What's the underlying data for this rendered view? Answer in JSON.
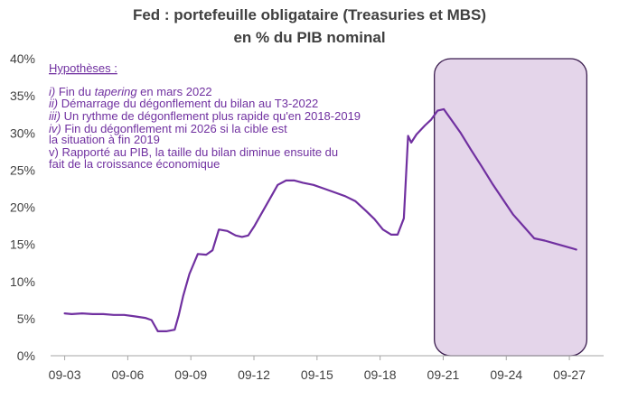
{
  "chart_data": {
    "type": "line",
    "title": "Fed : portefeuille obligataire (Treasuries et MBS)",
    "subtitle": "en % du PIB nominal",
    "ylim": [
      0,
      40
    ],
    "xlim": [
      2003,
      2029.3
    ],
    "y_tick_labels": [
      "0%",
      "5%",
      "10%",
      "15%",
      "20%",
      "25%",
      "30%",
      "35%",
      "40%"
    ],
    "y_tick_values": [
      0,
      5,
      10,
      15,
      20,
      25,
      30,
      35,
      40
    ],
    "x_tick_labels": [
      "09-03",
      "09-06",
      "09-09",
      "09-12",
      "09-15",
      "09-18",
      "09-21",
      "09-24",
      "09-27"
    ],
    "x_tick_values": [
      2003.67,
      2006.67,
      2009.67,
      2012.67,
      2015.67,
      2018.67,
      2021.67,
      2024.67,
      2027.67
    ],
    "grid": false,
    "legend": "none",
    "colors": {
      "line": "#7030a0",
      "highlight_fill": "#e4d5ea",
      "highlight_stroke": "#3b1d4f",
      "text": "#404040",
      "axis": "#a6a6a6"
    },
    "highlight_region": {
      "x_start": 2021.25,
      "x_end": 2028.5,
      "y_bottom": 0,
      "y_top": 40
    },
    "annotation": {
      "heading": "Hypothèses :",
      "lines": [
        {
          "num": "i)",
          "pre": " Fin du ",
          "em": "tapering",
          "post": " en mars 2022"
        },
        {
          "num": "ii)",
          "pre": " Démarrage du dégonflement du bilan au T3-2022",
          "em": "",
          "post": ""
        },
        {
          "num": "iii)",
          "pre": " Un rythme de dégonflement plus rapide qu'en 2018-2019",
          "em": "",
          "post": ""
        },
        {
          "num": "iv)",
          "pre": " Fin du dégonflement mi 2026 si la cible est",
          "em": "",
          "post": ""
        },
        {
          "num": "",
          "pre": "la situation à fin 2019",
          "em": "",
          "post": ""
        },
        {
          "num": "",
          "pre": "v) Rapporté au PIB, la taille du bilan diminue ensuite du",
          "em": "",
          "post": ""
        },
        {
          "num": "",
          "pre": "fait de la croissance économique",
          "em": "",
          "post": ""
        }
      ]
    },
    "series": [
      {
        "x": [
          2003.67,
          2004.0,
          2004.5,
          2005.0,
          2005.5,
          2006.0,
          2006.5,
          2007.0,
          2007.5,
          2007.8,
          2008.1,
          2008.5,
          2008.9,
          2009.1,
          2009.3,
          2009.6,
          2010.0,
          2010.4,
          2010.7,
          2011.0,
          2011.4,
          2011.8,
          2012.1,
          2012.4,
          2012.7,
          2013.0,
          2013.4,
          2013.8,
          2014.2,
          2014.6,
          2015.0,
          2015.5,
          2016.0,
          2016.5,
          2017.0,
          2017.5,
          2018.0,
          2018.4,
          2018.8,
          2019.2,
          2019.5,
          2019.8,
          2020.0,
          2020.15,
          2020.4,
          2020.8,
          2021.1,
          2021.4,
          2021.7,
          2022.0,
          2022.5,
          2023.0,
          2023.5,
          2024.0,
          2024.5,
          2025.0,
          2025.5,
          2026.0,
          2026.5,
          2027.0,
          2027.5,
          2028.0
        ],
        "y": [
          5.7,
          5.6,
          5.7,
          5.6,
          5.6,
          5.5,
          5.5,
          5.3,
          5.1,
          4.8,
          3.3,
          3.3,
          3.5,
          5.5,
          8.0,
          11.0,
          13.7,
          13.6,
          14.2,
          17.0,
          16.8,
          16.2,
          16.0,
          16.2,
          17.5,
          19.0,
          21.0,
          23.0,
          23.6,
          23.6,
          23.3,
          23.0,
          22.5,
          22.0,
          21.5,
          20.8,
          19.5,
          18.4,
          17.0,
          16.3,
          16.3,
          18.5,
          29.6,
          28.7,
          29.8,
          31.0,
          31.8,
          33.0,
          33.2,
          32.0,
          30.0,
          27.7,
          25.5,
          23.2,
          21.1,
          19.0,
          17.4,
          15.8,
          15.5,
          15.1,
          14.7,
          14.3
        ]
      }
    ]
  }
}
